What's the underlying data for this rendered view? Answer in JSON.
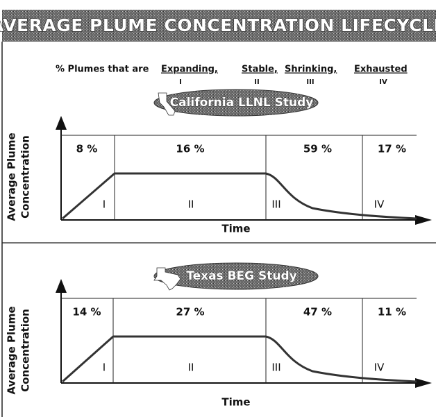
{
  "title": "AVERAGE PLUME CONCENTRATION LIFECYCLE",
  "legend": {
    "lead": "% Plumes that are",
    "stages": [
      {
        "name": "Expanding,",
        "numeral": "I"
      },
      {
        "name": "Stable,",
        "numeral": "II"
      },
      {
        "name": "Shrinking,",
        "numeral": "III"
      },
      {
        "name": "Exhausted",
        "numeral": "IV"
      }
    ]
  },
  "panels": [
    {
      "study": "California LLNL Study",
      "percentages": [
        "8 %",
        "16 %",
        "59 %",
        "17 %"
      ],
      "numerals": [
        "I",
        "II",
        "III",
        "IV"
      ],
      "y_label": [
        "Average Plume",
        "Concentration"
      ],
      "x_label": "Time"
    },
    {
      "study": "Texas BEG Study",
      "percentages": [
        "14 %",
        "27 %",
        "47 %",
        "11 %"
      ],
      "numerals": [
        "I",
        "II",
        "III",
        "IV"
      ],
      "y_label": [
        "Average Plume",
        "Concentration"
      ],
      "x_label": "Time"
    }
  ]
}
